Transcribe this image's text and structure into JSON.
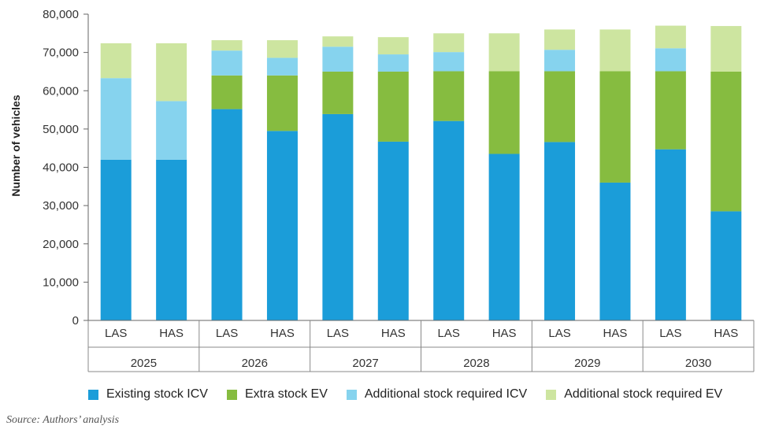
{
  "chart_data": {
    "type": "bar",
    "stacked": true,
    "ylabel": "Number of vehicles",
    "ylim": [
      0,
      80000
    ],
    "yticks": [
      0,
      10000,
      20000,
      30000,
      40000,
      50000,
      60000,
      70000,
      80000
    ],
    "ytick_labels": [
      "0",
      "10,000",
      "20,000",
      "30,000",
      "40,000",
      "50,000",
      "60,000",
      "70,000",
      "80,000"
    ],
    "groups": [
      "2025",
      "2026",
      "2027",
      "2028",
      "2029",
      "2030"
    ],
    "categories": [
      "LAS",
      "HAS",
      "LAS",
      "HAS",
      "LAS",
      "HAS",
      "LAS",
      "HAS",
      "LAS",
      "HAS",
      "LAS",
      "HAS"
    ],
    "series": [
      {
        "name": "Existing stock ICV",
        "color": "#1b9dd9",
        "values": [
          42000,
          42000,
          55200,
          49500,
          53900,
          46700,
          52100,
          43500,
          46600,
          36000,
          44700,
          28500
        ]
      },
      {
        "name": "Extra stock EV",
        "color": "#86bc40",
        "values": [
          0,
          0,
          8800,
          14500,
          11100,
          18300,
          13000,
          21600,
          18500,
          29100,
          20400,
          36500
        ]
      },
      {
        "name": "Additional stock required ICV",
        "color": "#86d3ee",
        "values": [
          21300,
          15300,
          6500,
          4600,
          6500,
          4500,
          5000,
          0,
          5600,
          0,
          6000,
          0
        ]
      },
      {
        "name": "Additional stock required EV",
        "color": "#cde5a0",
        "values": [
          9100,
          15100,
          2700,
          4600,
          2700,
          4500,
          4900,
          9900,
          5300,
          10900,
          5900,
          11900
        ]
      }
    ],
    "legend_position": "bottom",
    "grid": false
  },
  "source_note": "Source: Authors’ analysis"
}
